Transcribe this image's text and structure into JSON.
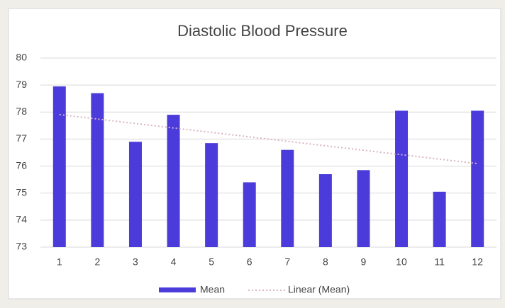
{
  "chart_data": {
    "type": "bar",
    "title": "Diastolic Blood Pressure",
    "categories": [
      "1",
      "2",
      "3",
      "4",
      "5",
      "6",
      "7",
      "8",
      "9",
      "10",
      "11",
      "12"
    ],
    "series": [
      {
        "name": "Mean",
        "color": "#4b3bdb",
        "values": [
          78.95,
          78.7,
          76.9,
          77.9,
          76.85,
          75.4,
          76.6,
          75.7,
          75.85,
          78.05,
          75.05,
          78.05
        ]
      }
    ],
    "trendline": {
      "name": "Linear (Mean)",
      "color": "#d9b3c6"
    },
    "ylim": [
      73,
      80
    ],
    "yticks": [
      73,
      74,
      75,
      76,
      77,
      78,
      79,
      80
    ],
    "grid": true,
    "legend": "bottom"
  }
}
